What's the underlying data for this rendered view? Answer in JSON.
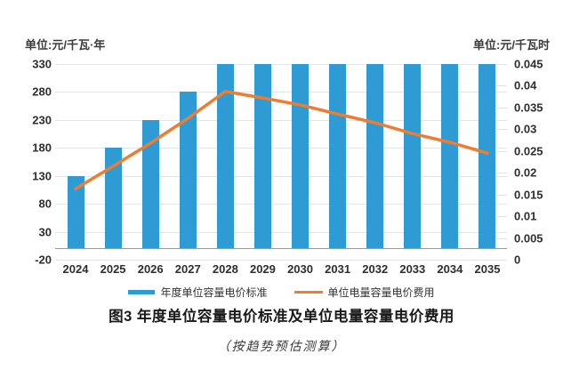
{
  "chart_data": {
    "type": "combo",
    "title": "图3  年度单位容量电价标准及单位电量容量电价费用",
    "subtitle": "（按趋势预估测算）",
    "categories": [
      "2024",
      "2025",
      "2026",
      "2027",
      "2028",
      "2029",
      "2030",
      "2031",
      "2032",
      "2033",
      "2034",
      "2035"
    ],
    "series": [
      {
        "name": "年度单位容量电价标准",
        "type": "bar",
        "axis": "left",
        "color": "#2e9bd5",
        "values": [
          130,
          180,
          230,
          280,
          330,
          330,
          330,
          330,
          330,
          330,
          330,
          330
        ]
      },
      {
        "name": "单位电量容量电价费用",
        "type": "line",
        "axis": "right",
        "color": "#ed7d31",
        "values": [
          0.0163,
          0.0215,
          0.0268,
          0.0325,
          0.0387,
          0.0372,
          0.0356,
          0.0335,
          0.0315,
          0.029,
          0.027,
          0.0245
        ]
      }
    ],
    "left_axis": {
      "unit_label": "单位:元/千瓦·年",
      "min": -20,
      "max": 330,
      "step": 50,
      "ticks": [
        "330",
        "280",
        "230",
        "180",
        "130",
        "80",
        "30",
        "-20"
      ]
    },
    "right_axis": {
      "unit_label": "单位:元/千瓦时",
      "min": 0,
      "max": 0.045,
      "step": 0.005,
      "ticks": [
        "0.045",
        "0.04",
        "0.035",
        "0.03",
        "0.025",
        "0.02",
        "0.015",
        "0.01",
        "0.005",
        "0"
      ]
    },
    "legend": {
      "position": "bottom",
      "items": [
        "年度单位容量电价标准",
        "单位电量容量电价费用"
      ]
    },
    "grid": "horizontal",
    "bar_baseline": 0
  },
  "colors": {
    "bar": "#2e9bd5",
    "line": "#ed7d31",
    "gridline": "#e3e5e8",
    "axis": "#9b9b9b",
    "tick_text": "#2e2e2e"
  }
}
